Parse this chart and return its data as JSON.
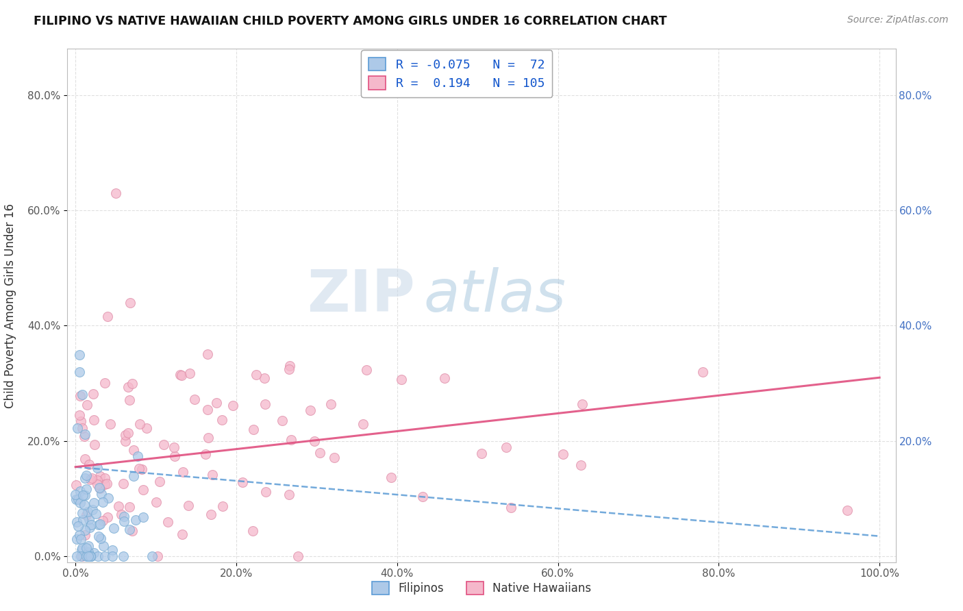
{
  "title": "FILIPINO VS NATIVE HAWAIIAN CHILD POVERTY AMONG GIRLS UNDER 16 CORRELATION CHART",
  "source": "Source: ZipAtlas.com",
  "ylabel": "Child Poverty Among Girls Under 16",
  "r_filipino": -0.075,
  "n_filipino": 72,
  "r_hawaiian": 0.194,
  "n_hawaiian": 105,
  "filipino_color": "#adc9e8",
  "hawaiian_color": "#f5b8cb",
  "filipino_line_color": "#5b9bd5",
  "hawaiian_line_color": "#e05080",
  "legend_filipino": "Filipinos",
  "legend_hawaiian": "Native Hawaiians",
  "watermark_zip": "ZIP",
  "watermark_atlas": "atlas",
  "xlim": [
    0.0,
    1.0
  ],
  "ylim": [
    0.0,
    0.88
  ],
  "x_ticks": [
    0.0,
    0.2,
    0.4,
    0.6,
    0.8,
    1.0
  ],
  "y_ticks": [
    0.0,
    0.2,
    0.4,
    0.6,
    0.8
  ],
  "right_y_ticks": [
    0.2,
    0.4,
    0.6,
    0.8
  ],
  "right_y_labels": [
    "20.0%",
    "40.0%",
    "60.0%",
    "80.0%"
  ]
}
